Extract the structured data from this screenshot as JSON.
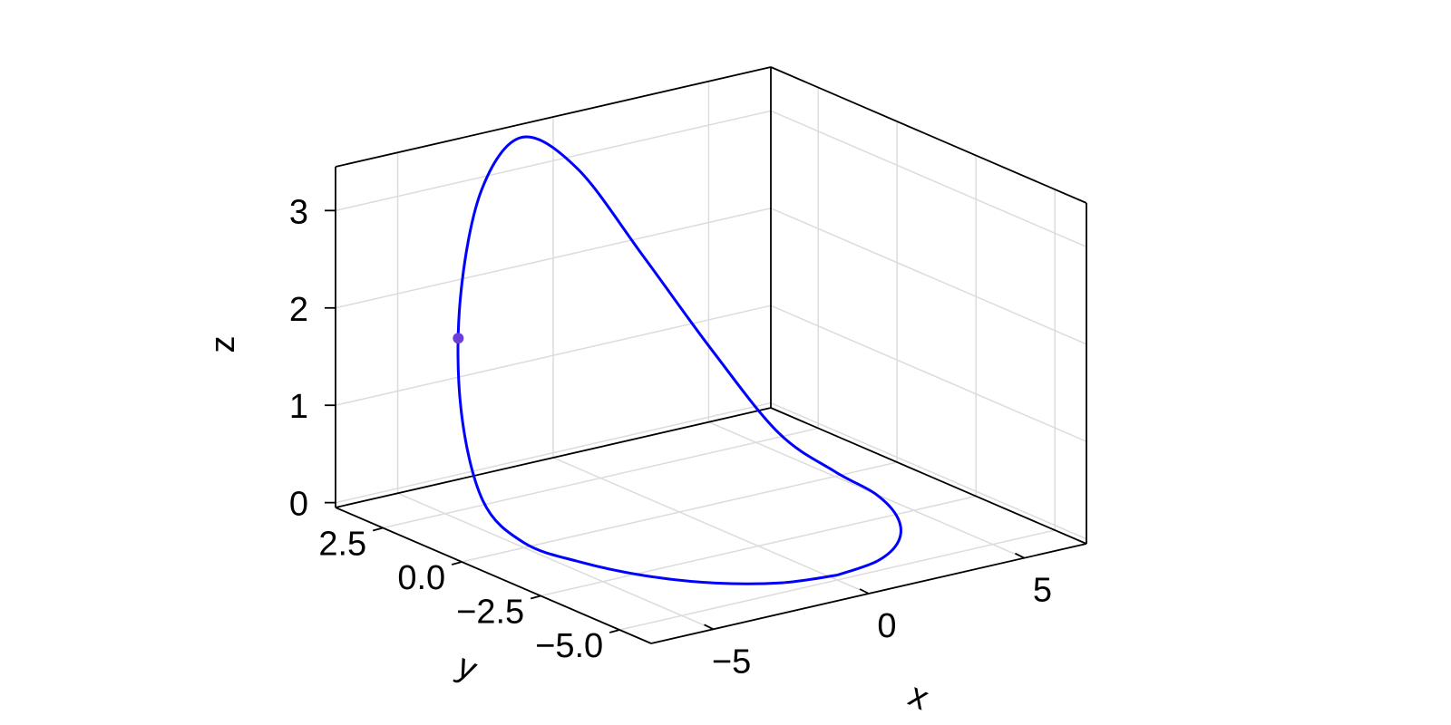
{
  "chart_data": {
    "type": "line3d",
    "x_label": "x",
    "y_label": "y",
    "z_label": "z",
    "x_range": [
      -7,
      7
    ],
    "y_range": [
      -6,
      4
    ],
    "z_range": [
      -0.05,
      3.45
    ],
    "x_ticks": [
      {
        "value": -5,
        "label": "−5"
      },
      {
        "value": 0,
        "label": "0"
      },
      {
        "value": 5,
        "label": "5"
      }
    ],
    "y_ticks": [
      {
        "value": 2.5,
        "label": "2.5"
      },
      {
        "value": 0.0,
        "label": "0.0"
      },
      {
        "value": -2.5,
        "label": "−2.5"
      },
      {
        "value": -5.0,
        "label": "−5.0"
      }
    ],
    "z_ticks": [
      {
        "value": 0,
        "label": "0"
      },
      {
        "value": 1,
        "label": "1"
      },
      {
        "value": 2,
        "label": "2"
      },
      {
        "value": 3,
        "label": "3"
      }
    ],
    "grid": true,
    "series": [
      {
        "color": "#0000ff",
        "points": [
          [
            0.0,
            -5.0,
            0.0
          ],
          [
            1.5529,
            -4.7553,
            0.0
          ],
          [
            2.9389,
            -4.0451,
            0.0
          ],
          [
            4.0451,
            -2.9389,
            0.0
          ],
          [
            4.7553,
            -1.5451,
            0.0
          ],
          [
            5.0,
            0.0,
            0.0
          ],
          [
            4.7553,
            1.5451,
            0.2
          ],
          [
            4.0451,
            2.9389,
            0.9
          ],
          [
            2.9389,
            4.0451,
            1.8
          ],
          [
            1.5451,
            4.7553,
            2.7
          ],
          [
            0.0,
            5.0,
            3.1
          ],
          [
            -1.5451,
            4.7553,
            2.7
          ],
          [
            -2.9389,
            4.0451,
            1.8
          ],
          [
            -4.0451,
            2.9389,
            0.9
          ],
          [
            -4.7553,
            1.5451,
            0.2
          ],
          [
            -5.0,
            0.0,
            0.0
          ],
          [
            -4.7553,
            -1.5451,
            0.0
          ],
          [
            -4.0451,
            -2.9389,
            0.0
          ],
          [
            -2.9389,
            -4.0451,
            0.0
          ],
          [
            -1.5451,
            -4.7553,
            0.0
          ],
          [
            0.0,
            -5.0,
            0.0
          ]
        ]
      }
    ],
    "marker": {
      "x": -3.53,
      "y": 3.53,
      "z": 1.5,
      "color": "#6a3fd8"
    }
  }
}
